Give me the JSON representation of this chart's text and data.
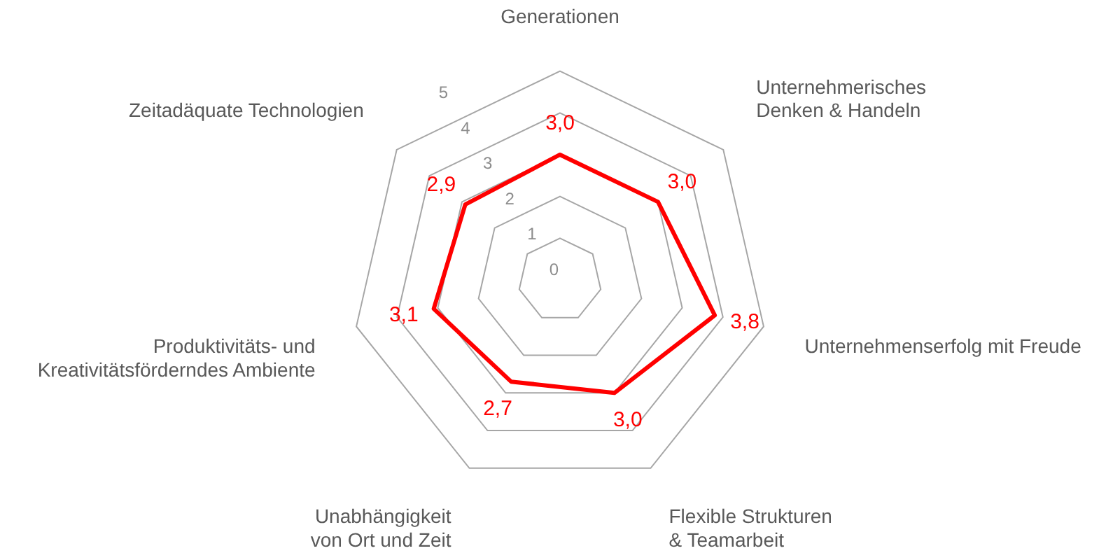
{
  "chart_data": {
    "type": "radar",
    "categories": [
      "Generationen",
      "Unternehmerisches Denken & Handeln",
      "Unternehmenserfolg mit Freude",
      "Flexible Strukturen & Teamarbeit",
      "Unabhängigkeit von Ort und Zeit",
      "Produktivitäts- und Kreativitätsförderndes Ambiente",
      "Zeitadäquate Technologien"
    ],
    "series": [
      {
        "color": "#ff0000",
        "values": [
          3.0,
          3.0,
          3.8,
          3.0,
          2.7,
          3.1,
          2.9
        ],
        "value_labels": [
          "3,0",
          "3,0",
          "3,8",
          "3,0",
          "2,7",
          "3,1",
          "2,9"
        ]
      }
    ],
    "ylim": [
      0,
      5
    ],
    "yticks": [
      0,
      1,
      2,
      3,
      4,
      5
    ],
    "grid": true,
    "legend": false,
    "marker": "none"
  }
}
